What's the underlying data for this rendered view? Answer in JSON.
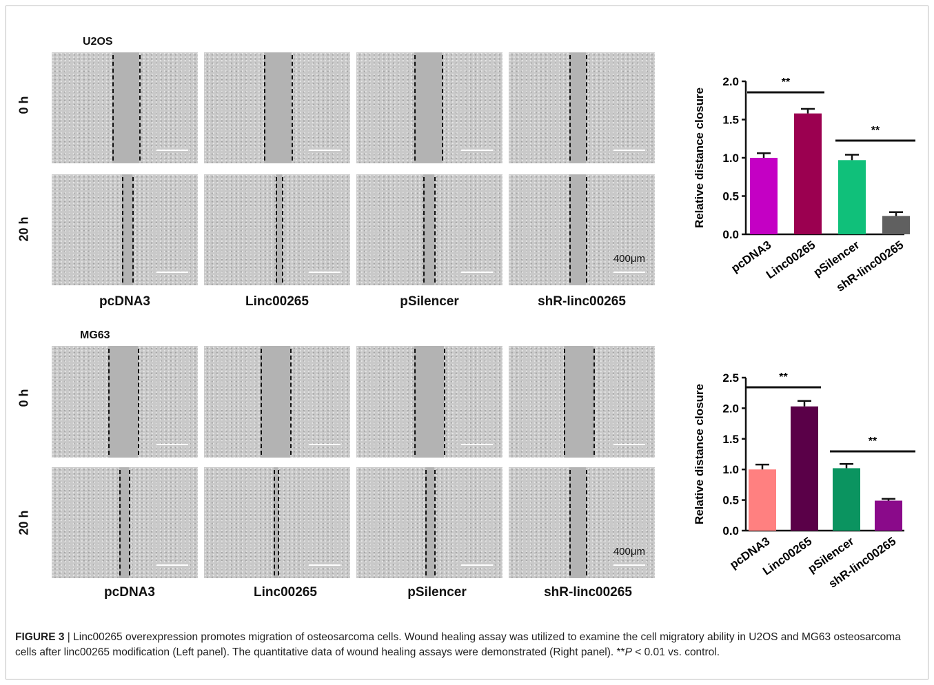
{
  "figure": {
    "caption_label": "FIGURE 3",
    "caption_sep": " | ",
    "caption_text_1": "Linc00265 overexpression promotes migration of osteosarcoma cells. Wound healing assay was utilized to examine the cell migratory ability in U2OS and MG63 osteosarcoma cells after linc00265 modification (Left panel). The quantitative data of wound healing assays were demonstrated (Right panel). **",
    "caption_italic": "P",
    "caption_text_2": " < 0.01 vs. control."
  },
  "panels": [
    {
      "cell_line": "U2OS",
      "rows": [
        "0 h",
        "20 h"
      ],
      "columns": [
        "pcDNA3",
        "Linc00265",
        "pSilencer",
        "shR-linc00265"
      ],
      "scale": "400μm"
    },
    {
      "cell_line": "MG63",
      "rows": [
        "0 h",
        "20 h"
      ],
      "columns": [
        "pcDNA3",
        "Linc00265",
        "pSilencer",
        "shR-linc00265"
      ],
      "scale": "400μm"
    }
  ],
  "chart_data": [
    {
      "type": "bar",
      "categories": [
        "pcDNA3",
        "Linc00265",
        "pSilencer",
        "shR-linc00265"
      ],
      "values": [
        1.0,
        1.58,
        0.97,
        0.24
      ],
      "errors": [
        0.06,
        0.06,
        0.07,
        0.05
      ],
      "colors": [
        "#c400c4",
        "#9b0050",
        "#10c07a",
        "#606060"
      ],
      "ylabel": "Relative distance closure",
      "ylim": [
        0,
        2.0
      ],
      "yticks": [
        "0.0",
        "0.5",
        "1.0",
        "1.5",
        "2.0"
      ],
      "significance": [
        {
          "from": "pcDNA3",
          "to": "Linc00265",
          "label": "**"
        },
        {
          "from": "pSilencer",
          "to": "shR-linc00265",
          "label": "**"
        }
      ]
    },
    {
      "type": "bar",
      "categories": [
        "pcDNA3",
        "Linc00265",
        "pSilencer",
        "shR-linc00265"
      ],
      "values": [
        1.0,
        2.03,
        1.02,
        0.49
      ],
      "errors": [
        0.08,
        0.09,
        0.07,
        0.03
      ],
      "colors": [
        "#ff8080",
        "#5a0048",
        "#0b9460",
        "#8a0a8a"
      ],
      "ylabel": "Relative distance closure",
      "ylim": [
        0,
        2.5
      ],
      "yticks": [
        "0.0",
        "0.5",
        "1.0",
        "1.5",
        "2.0",
        "2.5"
      ],
      "significance": [
        {
          "from": "pcDNA3",
          "to": "Linc00265",
          "label": "**"
        },
        {
          "from": "pSilencer",
          "to": "shR-linc00265",
          "label": "**"
        }
      ]
    }
  ]
}
